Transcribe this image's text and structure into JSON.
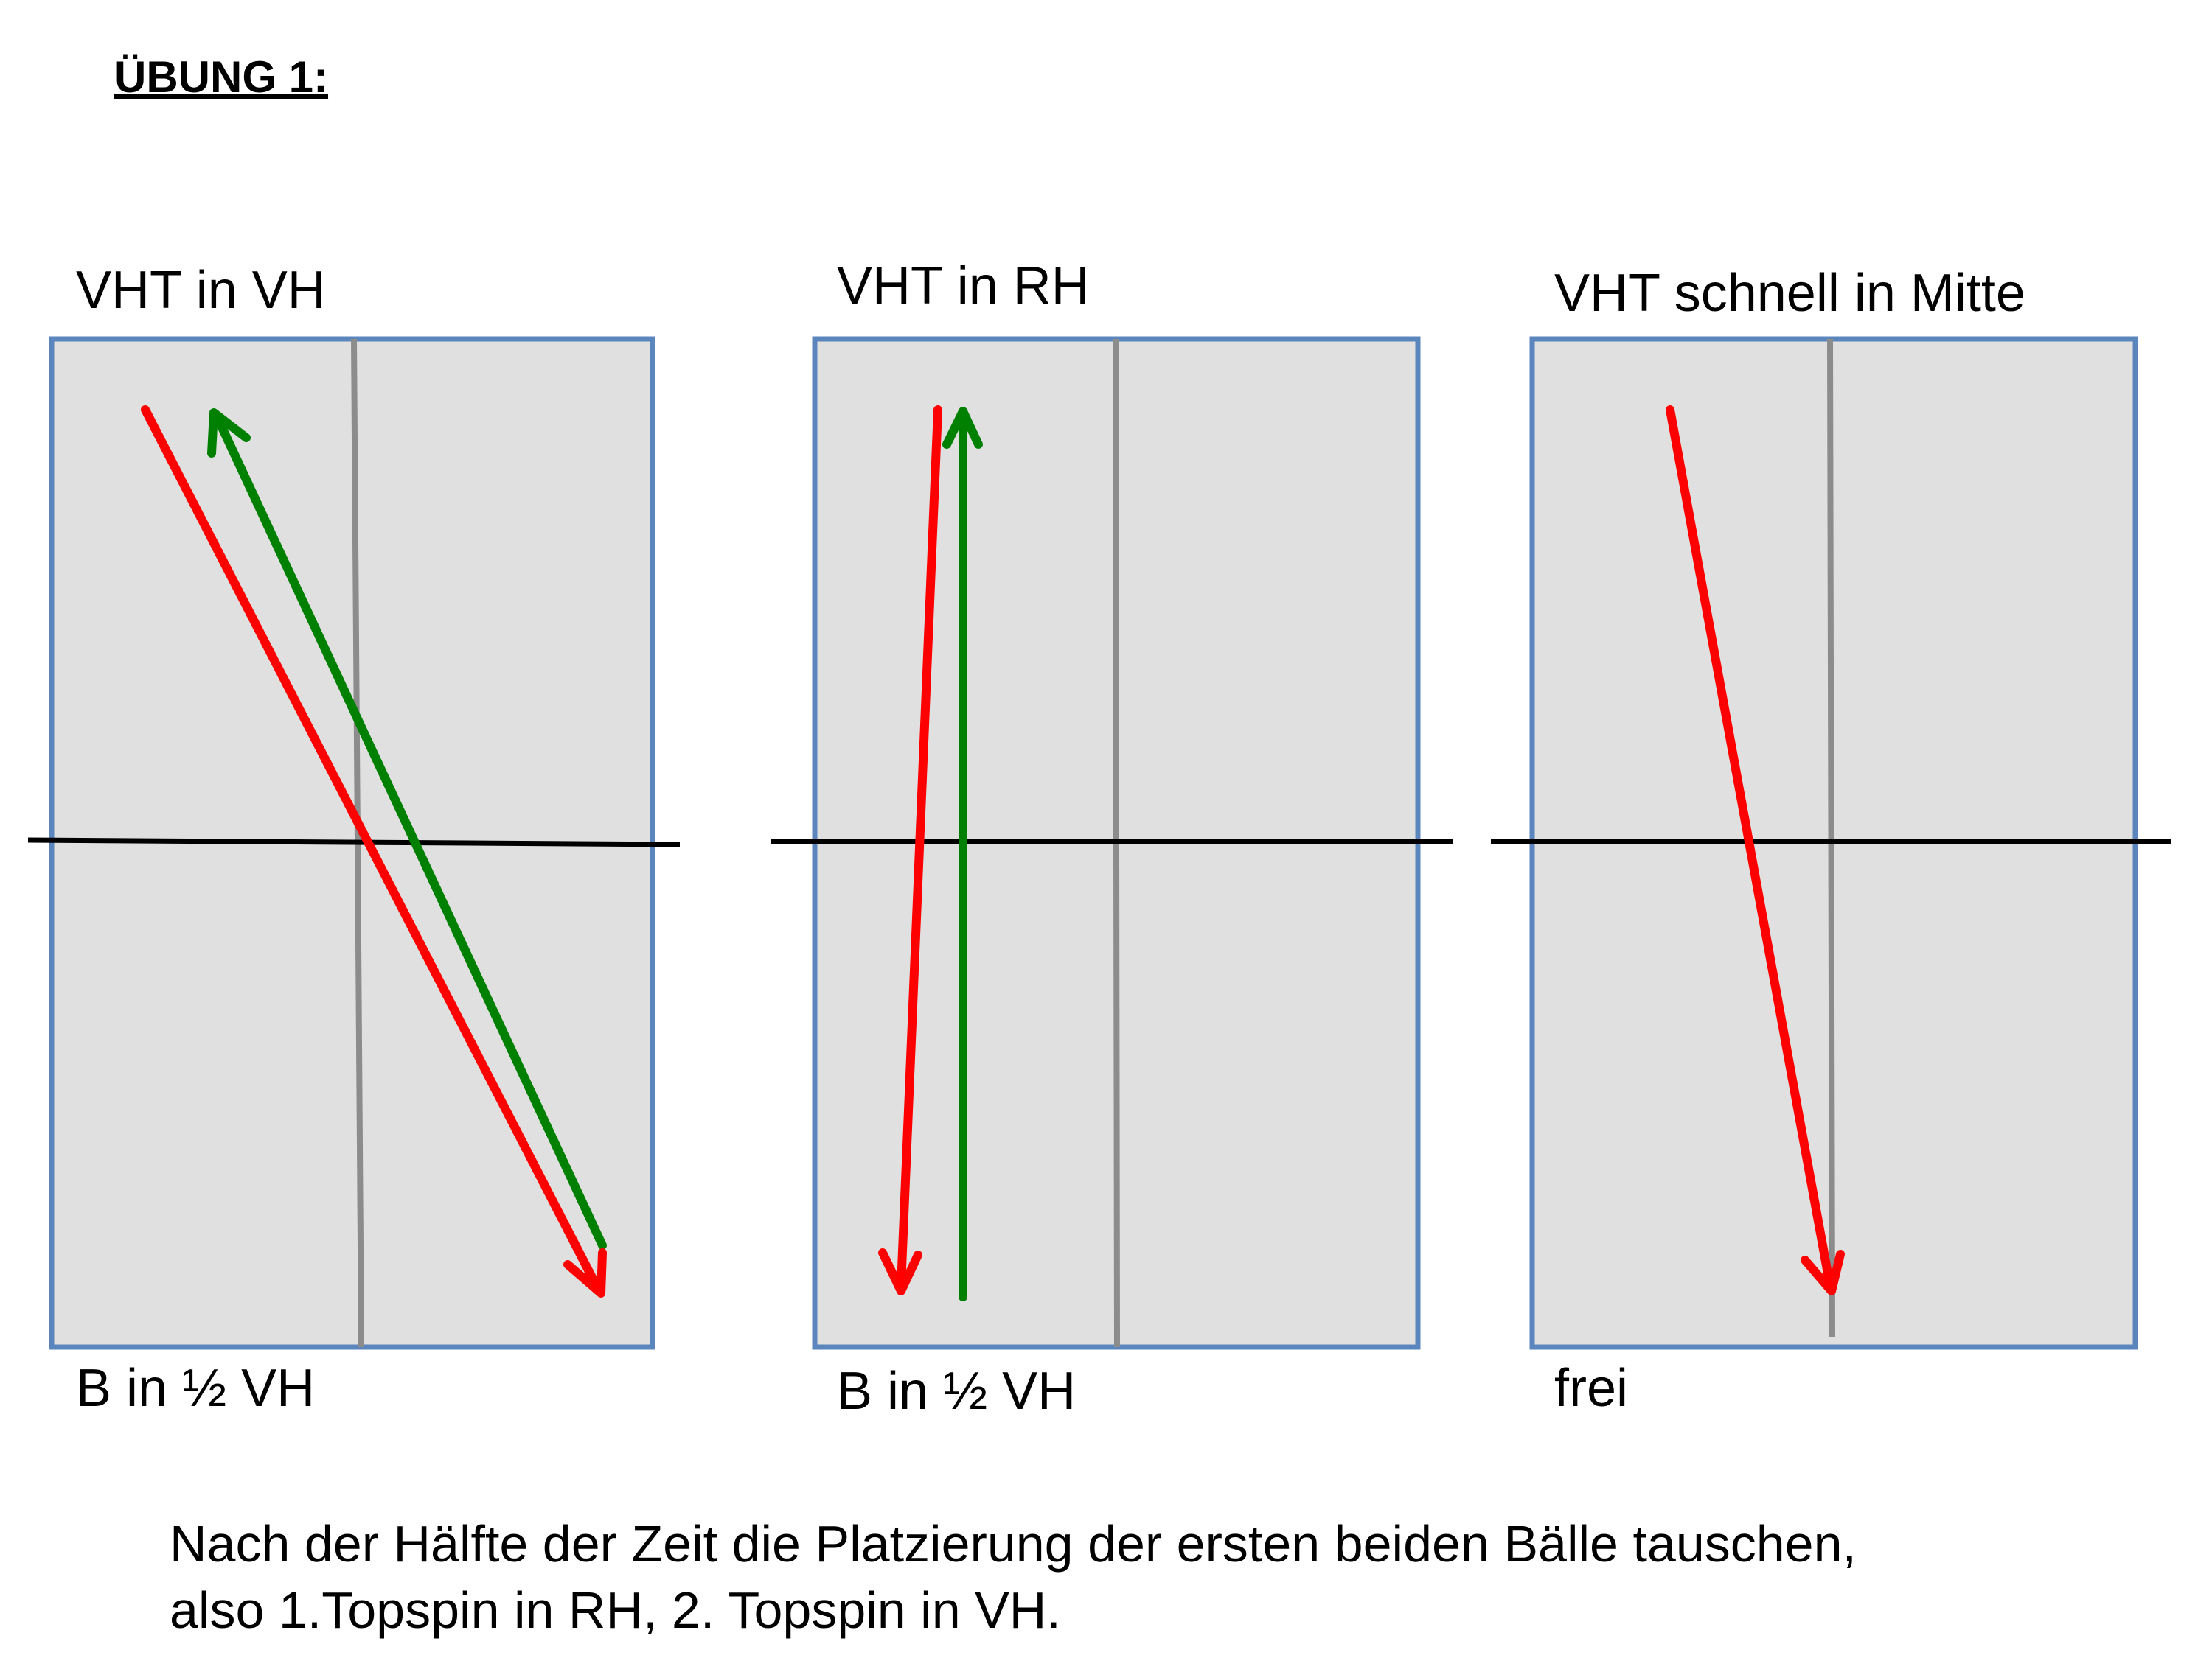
{
  "title": "ÜBUNG 1:",
  "panels": [
    {
      "top_label": "VHT in VH",
      "bottom_label": "B in ½ VH"
    },
    {
      "top_label": "VHT in RH",
      "bottom_label": "B in ½ VH"
    },
    {
      "top_label": "VHT schnell in Mitte",
      "bottom_label": "frei"
    }
  ],
  "footer": {
    "line1": "Nach der Hälfte der Zeit die Platzierung der ersten beiden Bälle tauschen,",
    "line2": "also 1.Topspin in RH, 2. Topspin in VH."
  },
  "colors": {
    "table_fill": "#e0e0e0",
    "table_border": "#5b86bd",
    "center_line": "#8c8c8c",
    "net": "#000000",
    "red_arrow": "#ff0000",
    "green_arrow": "#008000"
  }
}
